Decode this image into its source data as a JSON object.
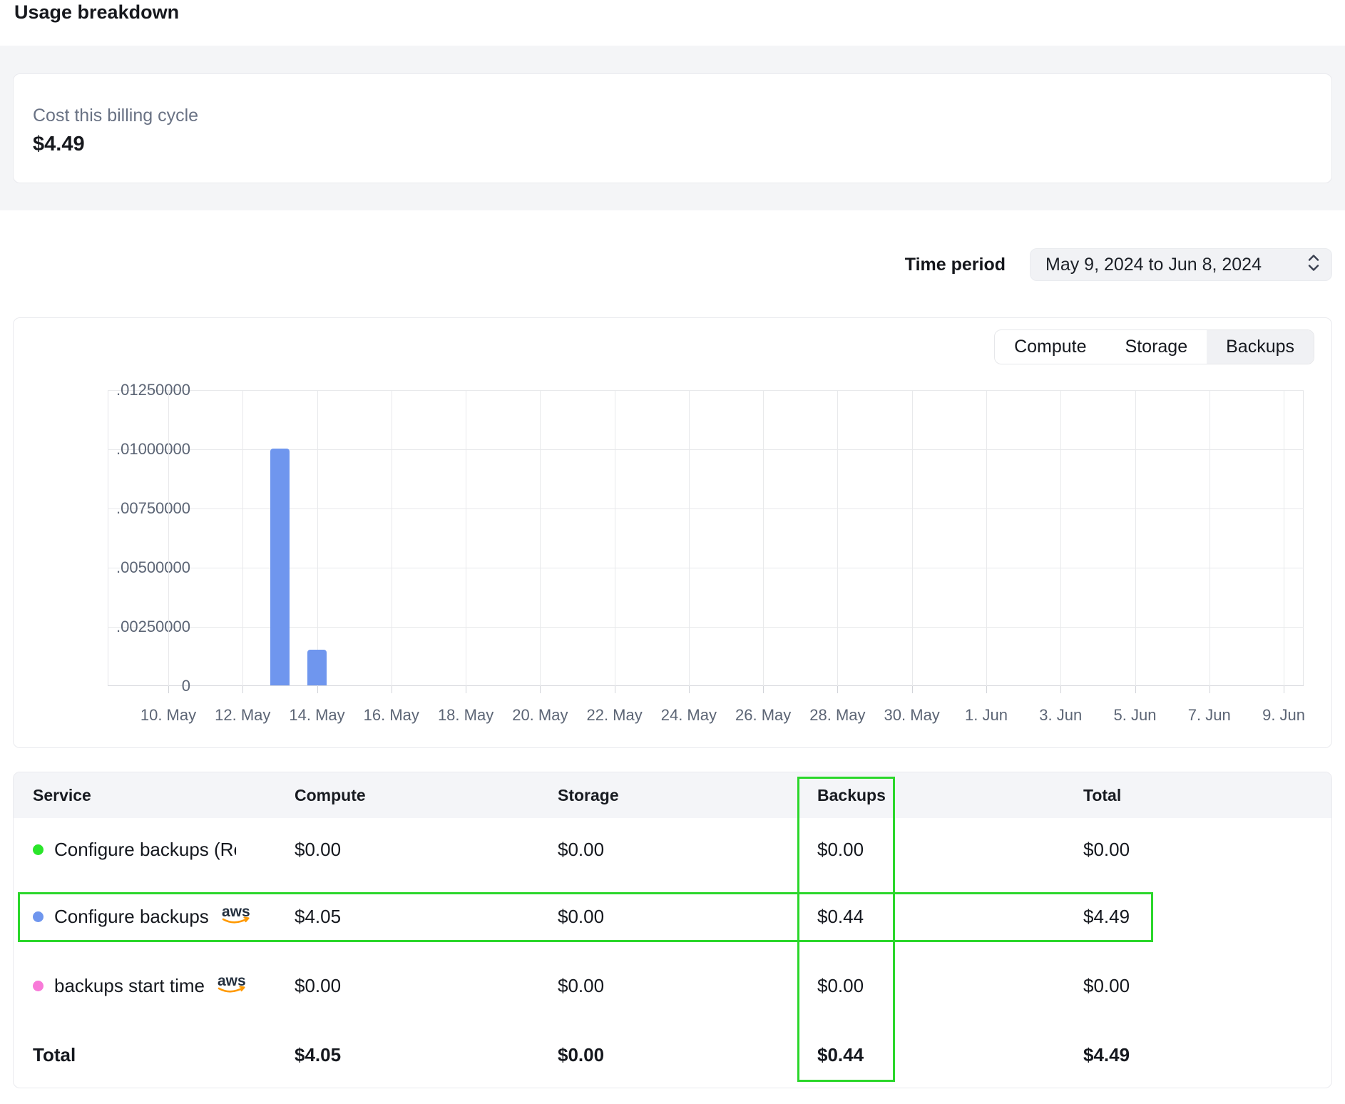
{
  "page": {
    "title": "Usage breakdown"
  },
  "summary": {
    "label": "Cost this billing cycle",
    "value": "$4.49"
  },
  "time_period": {
    "label": "Time period",
    "value": "May 9, 2024 to Jun 8, 2024"
  },
  "tabs": [
    {
      "label": "Compute",
      "selected": false
    },
    {
      "label": "Storage",
      "selected": false
    },
    {
      "label": "Backups",
      "selected": true
    }
  ],
  "chart_data": {
    "type": "bar",
    "metric_tab": "Backups",
    "xticklabels": [
      "10. May",
      "12. May",
      "14. May",
      "16. May",
      "18. May",
      "20. May",
      "22. May",
      "24. May",
      "26. May",
      "28. May",
      "30. May",
      "1. Jun",
      "3. Jun",
      "5. Jun",
      "7. Jun",
      "9. Jun"
    ],
    "yticks": [
      0,
      0.0025,
      0.005,
      0.0075,
      0.01,
      0.0125
    ],
    "ytick_labels": [
      "0",
      ".00250000",
      ".00500000",
      ".00750000",
      ".01000000",
      ".01250000"
    ],
    "ylim": [
      0,
      0.0125
    ],
    "points": [
      {
        "date": "13. May",
        "day_offset": 3,
        "value": 0.01
      },
      {
        "date": "14. May",
        "day_offset": 4,
        "value": 0.0015
      }
    ],
    "bar_color": "#6f96ee",
    "grid": true,
    "legend": "none",
    "title": ""
  },
  "table": {
    "columns": [
      "Service",
      "Compute",
      "Storage",
      "Backups",
      "Total"
    ],
    "rows": [
      {
        "service": "Configure backups (Resto",
        "dot_color": "#2ae52a",
        "aws_badge": false,
        "compute": "$0.00",
        "storage": "$0.00",
        "backups": "$0.00",
        "total": "$0.00",
        "highlighted": false
      },
      {
        "service": "Configure backups",
        "dot_color": "#6f96ee",
        "aws_badge": true,
        "compute": "$4.05",
        "storage": "$0.00",
        "backups": "$0.44",
        "total": "$4.49",
        "highlighted": true
      },
      {
        "service": "backups start time",
        "dot_color": "#f87ad8",
        "aws_badge": true,
        "compute": "$0.00",
        "storage": "$0.00",
        "backups": "$0.00",
        "total": "$0.00",
        "highlighted": false
      }
    ],
    "footer": {
      "label": "Total",
      "compute": "$4.05",
      "storage": "$0.00",
      "backups": "$0.44",
      "total": "$4.49"
    },
    "aws_badge_text": "aws",
    "aws_badge_colors": {
      "text": "#232f3e",
      "swoosh": "#ff9900"
    }
  },
  "annotations": {
    "highlight_color": "#2bd72b",
    "highlighted_column": "Backups",
    "highlighted_row_service": "Configure backups"
  }
}
